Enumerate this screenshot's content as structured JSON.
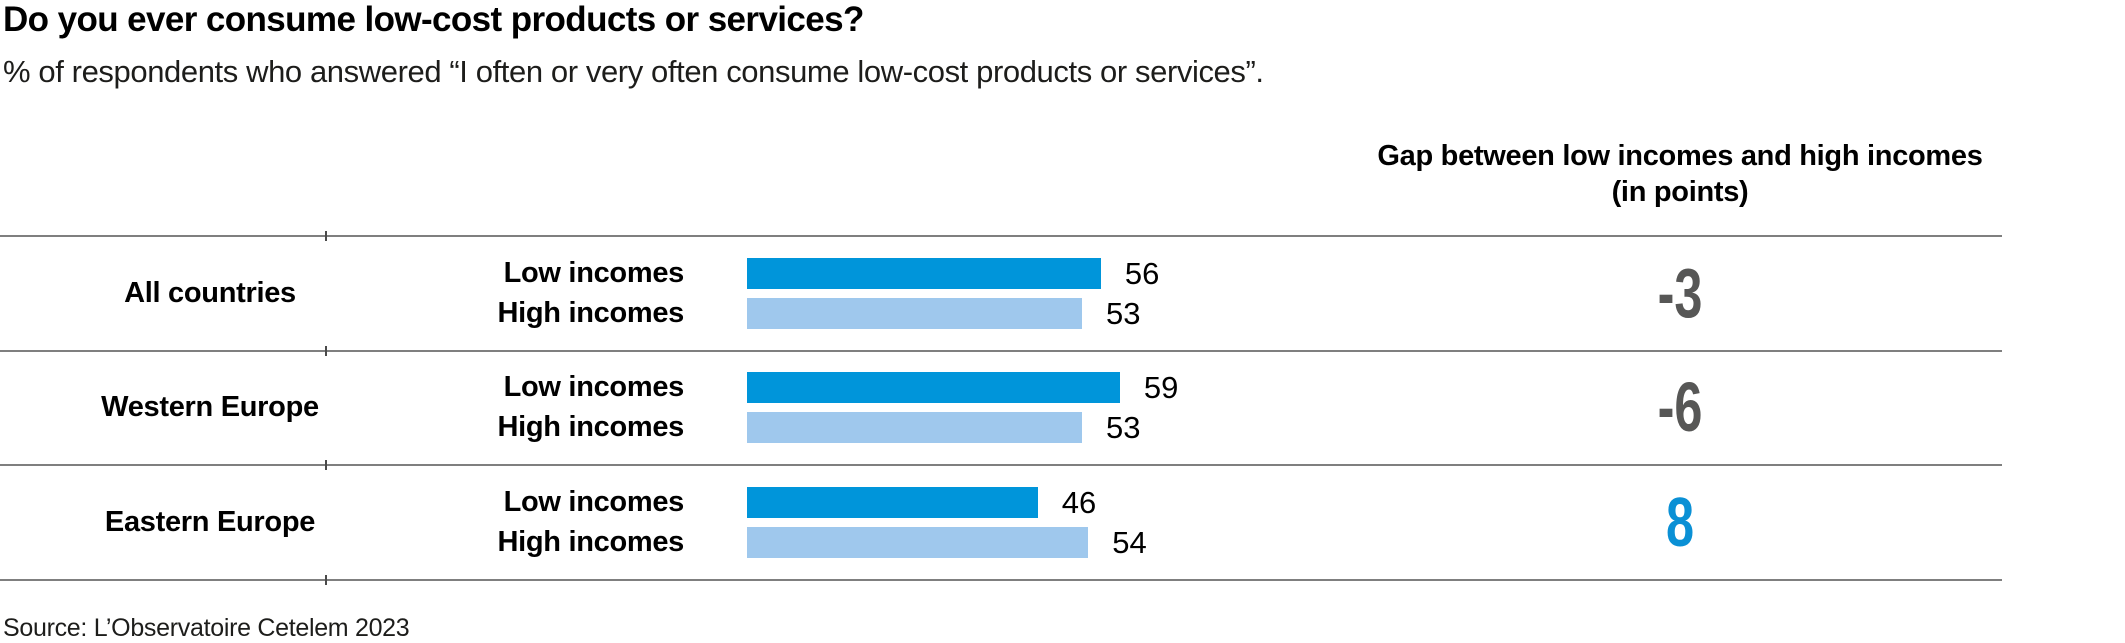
{
  "header": {
    "title": "Do you ever consume low-cost products or services?",
    "subtitle": "% of respondents who answered “I often or very often consume low-cost products or services”."
  },
  "gap_column": {
    "header_line1": "Gap between low incomes and high incomes",
    "header_line2": "(in points)"
  },
  "chart_data": {
    "type": "bar",
    "orientation": "horizontal",
    "title": "Do you ever consume low-cost products or services?",
    "subtitle": "% of respondents who answered “I often or very often consume low-cost products or services”.",
    "unit": "%",
    "xlim": [
      0,
      100
    ],
    "grid": false,
    "series_names": [
      "Low incomes",
      "High incomes"
    ],
    "colors": {
      "low_incomes": "#0095DA",
      "high_incomes": "#9FC8ED",
      "gap_negative": "#575756",
      "gap_positive": "#0A90D5",
      "divider_line": "#7F7F7F"
    },
    "rows": [
      {
        "region": "All countries",
        "low_label": "Low incomes",
        "high_label": "High incomes",
        "low": 56,
        "high": 53,
        "gap": -3,
        "gap_color": "#575756"
      },
      {
        "region": "Western Europe",
        "low_label": "Low incomes",
        "high_label": "High incomes",
        "low": 59,
        "high": 53,
        "gap": -6,
        "gap_color": "#575756"
      },
      {
        "region": "Eastern Europe",
        "low_label": "Low incomes",
        "high_label": "High incomes",
        "low": 46,
        "high": 54,
        "gap": 8,
        "gap_color": "#0A90D5"
      }
    ]
  },
  "footer": {
    "source": "Source: L’Observatoire Cetelem 2023"
  }
}
